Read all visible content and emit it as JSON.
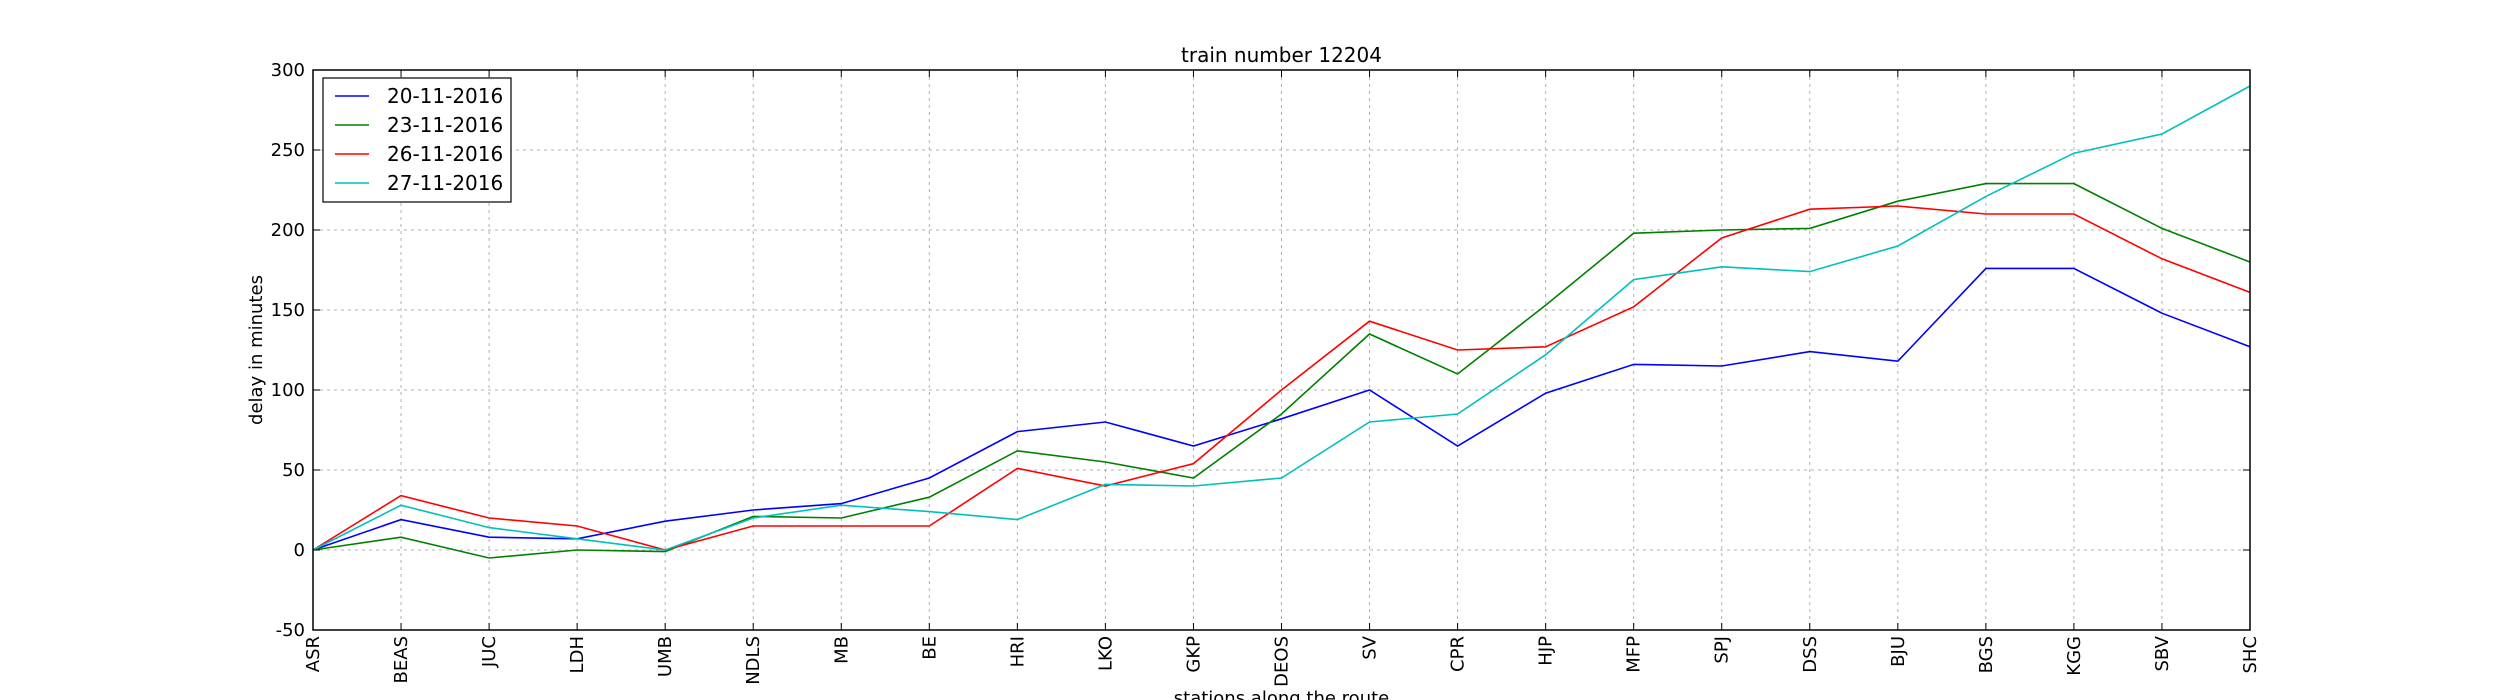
{
  "chart_data": {
    "type": "line",
    "title": "train number 12204",
    "xlabel": "stations along the route",
    "ylabel": "delay in minutes",
    "ylim": [
      -50,
      300
    ],
    "yticks": [
      -50,
      0,
      50,
      100,
      150,
      200,
      250,
      300
    ],
    "grid": true,
    "legend_position": "top-left",
    "categories": [
      "ASR",
      "BEAS",
      "JUC",
      "LDH",
      "UMB",
      "NDLS",
      "MB",
      "BE",
      "HRI",
      "LKO",
      "GKP",
      "DEOS",
      "SV",
      "CPR",
      "HJP",
      "MFP",
      "SPJ",
      "DSS",
      "BJU",
      "BGS",
      "KGG",
      "SBV",
      "SHC"
    ],
    "series": [
      {
        "name": "20-11-2016",
        "color": "#0000ff",
        "values": [
          0,
          19,
          8,
          7,
          18,
          25,
          29,
          45,
          74,
          80,
          65,
          82,
          100,
          65,
          98,
          116,
          115,
          124,
          118,
          176,
          176,
          148,
          127
        ]
      },
      {
        "name": "23-11-2016",
        "color": "#008000",
        "values": [
          0,
          8,
          -5,
          0,
          -1,
          21,
          20,
          33,
          62,
          55,
          45,
          85,
          135,
          110,
          153,
          198,
          200,
          201,
          218,
          229,
          229,
          201,
          180
        ]
      },
      {
        "name": "26-11-2016",
        "color": "#ff0000",
        "values": [
          0,
          34,
          20,
          15,
          0,
          15,
          15,
          15,
          51,
          40,
          54,
          100,
          143,
          125,
          127,
          152,
          195,
          213,
          215,
          210,
          210,
          182,
          161
        ]
      },
      {
        "name": "27-11-2016",
        "color": "#00bfbf",
        "values": [
          0,
          28,
          14,
          7,
          0,
          20,
          28,
          24,
          19,
          41,
          40,
          45,
          80,
          85,
          122,
          169,
          177,
          174,
          190,
          221,
          248,
          260,
          290
        ]
      }
    ]
  }
}
